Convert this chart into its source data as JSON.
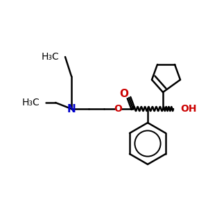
{
  "bg_color": "#ffffff",
  "black": "#000000",
  "blue": "#0000cc",
  "red": "#cc0000",
  "lw": 1.8,
  "fs": 10.0
}
